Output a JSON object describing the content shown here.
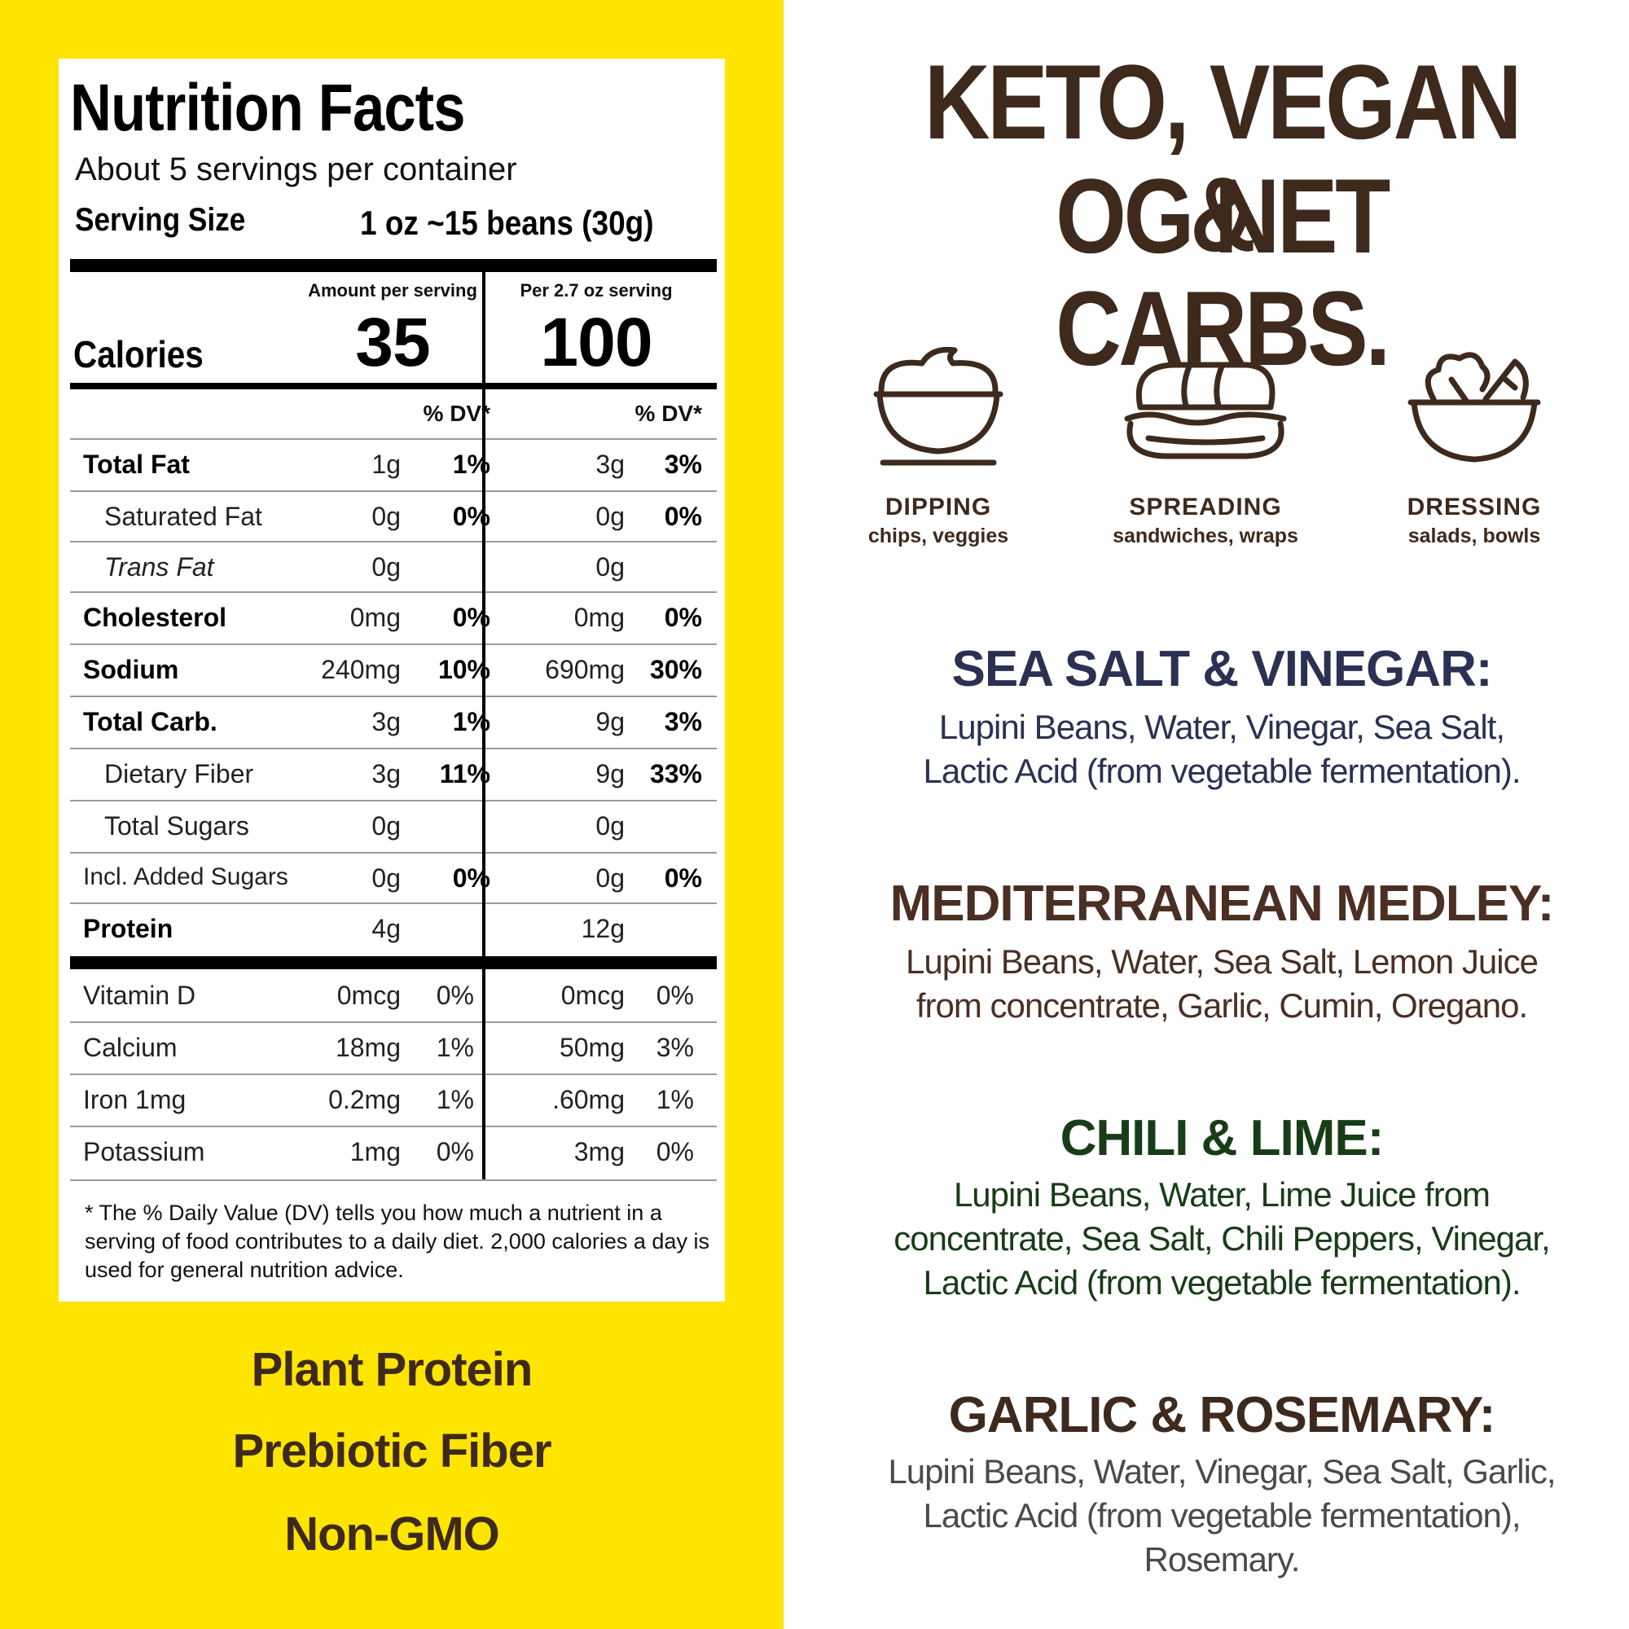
{
  "nutrition": {
    "title": "Nutrition Facts",
    "servings_per_container": "About 5 servings per container",
    "serving_size_label": "Serving Size",
    "serving_size_value": "1 oz ~15 beans (30g)",
    "col1_header": "Amount per serving",
    "col2_header": "Per 2.7 oz serving",
    "calories_label": "Calories",
    "calories_1": "35",
    "calories_2": "100",
    "dv_header": "% DV*",
    "nutrients": [
      {
        "name": "Total Fat",
        "amt1": "1g",
        "dv1": "1%",
        "amt2": "3g",
        "dv2": "3%"
      },
      {
        "name": "Saturated Fat",
        "amt1": "0g",
        "dv1": "0%",
        "amt2": "0g",
        "dv2": "0%"
      },
      {
        "name": "Trans Fat",
        "amt1": "0g",
        "dv1": "",
        "amt2": "0g",
        "dv2": ""
      },
      {
        "name": "Cholesterol",
        "amt1": "0mg",
        "dv1": "0%",
        "amt2": "0mg",
        "dv2": "0%"
      },
      {
        "name": "Sodium",
        "amt1": "240mg",
        "dv1": "10%",
        "amt2": "690mg",
        "dv2": "30%"
      },
      {
        "name": "Total Carb.",
        "amt1": "3g",
        "dv1": "1%",
        "amt2": "9g",
        "dv2": "3%"
      },
      {
        "name": "Dietary Fiber",
        "amt1": "3g",
        "dv1": "11%",
        "amt2": "9g",
        "dv2": "33%"
      },
      {
        "name": "Total Sugars",
        "amt1": "0g",
        "dv1": "",
        "amt2": "0g",
        "dv2": ""
      },
      {
        "name": "Incl. Added Sugars",
        "amt1": "0g",
        "dv1": "0%",
        "amt2": "0g",
        "dv2": "0%"
      },
      {
        "name": "Protein",
        "amt1": "4g",
        "dv1": "",
        "amt2": "12g",
        "dv2": ""
      }
    ],
    "vitamins": [
      {
        "name": "Vitamin D",
        "amt1": "0mcg",
        "dv1": "0%",
        "amt2": "0mcg",
        "dv2": "0%"
      },
      {
        "name": "Calcium",
        "amt1": "18mg",
        "dv1": "1%",
        "amt2": "50mg",
        "dv2": "3%"
      },
      {
        "name": "Iron 1mg",
        "amt1": "0.2mg",
        "dv1": "1%",
        "amt2": ".60mg",
        "dv2": "1%"
      },
      {
        "name": "Potassium",
        "amt1": "1mg",
        "dv1": "0%",
        "amt2": "3mg",
        "dv2": "0%"
      }
    ],
    "footnote": "* The % Daily Value (DV) tells you how much a nutrient in a serving of food contributes to a daily diet. 2,000 calories a day is used for general nutrition advice."
  },
  "benefits": [
    "Plant Protein",
    "Prebiotic Fiber",
    "Non-GMO"
  ],
  "headline": {
    "line1": "KETO, VEGAN &",
    "line2": "OG NET CARBS."
  },
  "uses": [
    {
      "title": "DIPPING",
      "subtitle": "chips, veggies",
      "icon": "dip-bowl-icon"
    },
    {
      "title": "SPREADING",
      "subtitle": "sandwiches, wraps",
      "icon": "sandwich-icon"
    },
    {
      "title": "DRESSING",
      "subtitle": "salads, bowls",
      "icon": "salad-bowl-icon"
    }
  ],
  "flavors": [
    {
      "title": "SEA SALT & VINEGAR:",
      "lines": [
        "Lupini Beans, Water, Vinegar, Sea Salt,",
        "Lactic Acid (from vegetable fermentation)."
      ],
      "color": "#2a3152"
    },
    {
      "title": "MEDITERRANEAN MEDLEY:",
      "lines": [
        "Lupini Beans, Water, Sea Salt, Lemon Juice",
        "from concentrate, Garlic, Cumin, Oregano."
      ],
      "color": "#4a2f22"
    },
    {
      "title": "CHILI & LIME:",
      "lines": [
        "Lupini Beans, Water, Lime Juice from",
        "concentrate, Sea Salt, Chili Peppers, Vinegar,",
        "Lactic Acid (from vegetable fermentation)."
      ],
      "color": "#173d17"
    },
    {
      "title": "GARLIC & ROSEMARY:",
      "lines": [
        "Lupini Beans, Water, Vinegar, Sea Salt, Garlic,",
        "Lactic Acid (from vegetable fermentation),",
        "Rosemary."
      ],
      "color": "#4a4a4a"
    }
  ],
  "colors": {
    "yellow": "#fde500",
    "brown": "#3e2a1c",
    "navy": "#2a3152",
    "green": "#173d17"
  }
}
